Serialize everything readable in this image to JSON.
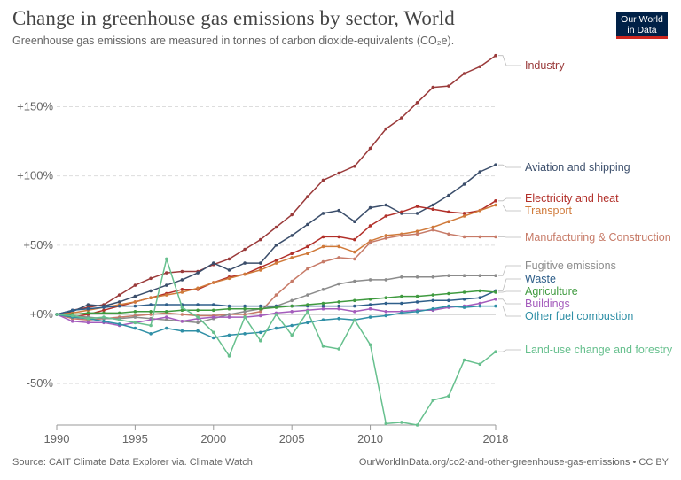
{
  "header": {
    "title": "Change in greenhouse gas emissions by sector, World",
    "subtitle": "Greenhouse gas emissions are measured in tonnes of carbon dioxide-equivalents (CO₂e).",
    "logo_line1": "Our World",
    "logo_line2": "in Data",
    "logo_colors": {
      "background": "#002147",
      "accent": "#ce261e"
    }
  },
  "footer": {
    "source": "Source: CAIT Climate Data Explorer via. Climate Watch",
    "url": "OurWorldInData.org/co2-and-other-greenhouse-gas-emissions • CC BY"
  },
  "chart_data": {
    "type": "line",
    "xlim": [
      1990,
      2018
    ],
    "ylim": [
      -80,
      190
    ],
    "x_ticks": [
      1990,
      1995,
      2000,
      2005,
      2010,
      2018
    ],
    "y_ticks": [
      -50,
      0,
      50,
      100,
      150
    ],
    "y_tick_labels": [
      "-50%",
      "+0%",
      "+50%",
      "+100%",
      "+150%"
    ],
    "grid": "horizontal dashed",
    "legend": "labels at line ends (right)",
    "x": [
      1990,
      1991,
      1992,
      1993,
      1994,
      1995,
      1996,
      1997,
      1998,
      1999,
      2000,
      2001,
      2002,
      2003,
      2004,
      2005,
      2006,
      2007,
      2008,
      2009,
      2010,
      2011,
      2012,
      2013,
      2014,
      2015,
      2016,
      2017,
      2018
    ],
    "series": [
      {
        "name": "Industry",
        "color": "#9a3a3a",
        "values": [
          0,
          3,
          5,
          7,
          14,
          21,
          26,
          30,
          31,
          31,
          36,
          40,
          47,
          54,
          63,
          72,
          85,
          97,
          102,
          107,
          120,
          134,
          142,
          153,
          164,
          165,
          174,
          179,
          187
        ]
      },
      {
        "name": "Aviation and shipping",
        "color": "#3b4e6b",
        "values": [
          0,
          2,
          7,
          6,
          9,
          13,
          17,
          21,
          25,
          30,
          37,
          32,
          37,
          37,
          50,
          57,
          65,
          73,
          75,
          67,
          77,
          79,
          73,
          73,
          79,
          86,
          94,
          103,
          108
        ]
      },
      {
        "name": "Electricity and heat",
        "color": "#b2302a",
        "values": [
          0,
          -2,
          0,
          3,
          6,
          9,
          12,
          15,
          18,
          18,
          23,
          27,
          29,
          34,
          39,
          44,
          49,
          56,
          56,
          54,
          64,
          71,
          74,
          78,
          76,
          74,
          73,
          75,
          82
        ]
      },
      {
        "name": "Transport",
        "color": "#d07a3a",
        "values": [
          0,
          1,
          3,
          5,
          7,
          9,
          12,
          14,
          16,
          19,
          23,
          26,
          29,
          32,
          37,
          41,
          44,
          49,
          49,
          45,
          53,
          57,
          58,
          60,
          63,
          67,
          71,
          75,
          79
        ]
      },
      {
        "name": "Manufacturing & Construction",
        "color": "#c77b68",
        "values": [
          0,
          -3,
          -4,
          -3,
          -2,
          -1,
          0,
          1,
          0,
          -1,
          -1,
          0,
          0,
          2,
          14,
          24,
          33,
          38,
          41,
          40,
          52,
          55,
          57,
          58,
          61,
          58,
          56,
          56,
          56
        ]
      },
      {
        "name": "Fugitive emissions",
        "color": "#8c8c8c",
        "values": [
          0,
          -1,
          -2,
          -3,
          -3,
          -2,
          -3,
          -4,
          -5,
          -6,
          -3,
          0,
          2,
          4,
          6,
          10,
          14,
          18,
          22,
          24,
          25,
          25,
          27,
          27,
          27,
          28,
          28,
          28,
          28
        ]
      },
      {
        "name": "Waste",
        "color": "#2f5f8a",
        "values": [
          0,
          3,
          4,
          5,
          6,
          6,
          7,
          7,
          7,
          7,
          7,
          6,
          6,
          6,
          6,
          6,
          6,
          6,
          6,
          6,
          7,
          8,
          8,
          9,
          10,
          10,
          11,
          12,
          17
        ]
      },
      {
        "name": "Agriculture",
        "color": "#3f9a3f",
        "values": [
          0,
          0,
          1,
          1,
          1,
          2,
          2,
          2,
          3,
          3,
          3,
          4,
          4,
          4,
          5,
          6,
          7,
          8,
          9,
          10,
          11,
          12,
          13,
          13,
          14,
          15,
          16,
          17,
          16
        ]
      },
      {
        "name": "Buildings",
        "color": "#a45cbc",
        "values": [
          0,
          -5,
          -6,
          -6,
          -8,
          -6,
          -4,
          -2,
          -5,
          -3,
          -2,
          -2,
          -2,
          -1,
          1,
          2,
          3,
          4,
          4,
          2,
          4,
          2,
          2,
          3,
          3,
          5,
          6,
          8,
          11
        ]
      },
      {
        "name": "Other fuel combustion",
        "color": "#2f8fa6",
        "values": [
          0,
          -2,
          -3,
          -5,
          -7,
          -10,
          -14,
          -10,
          -12,
          -12,
          -17,
          -15,
          -14,
          -13,
          -10,
          -8,
          -6,
          -4,
          -3,
          -4,
          -2,
          -1,
          1,
          2,
          4,
          6,
          5,
          6,
          6
        ]
      },
      {
        "name": "Land-use change and forestry",
        "color": "#67c08e",
        "values": [
          0,
          -1,
          -3,
          -2,
          -4,
          -6,
          -8,
          40,
          5,
          -2,
          -13,
          -30,
          -2,
          -19,
          0,
          -15,
          2,
          -23,
          -25,
          -4,
          -22,
          -79,
          -78,
          -80,
          -62,
          -59,
          -33,
          -36,
          -27
        ]
      }
    ]
  }
}
